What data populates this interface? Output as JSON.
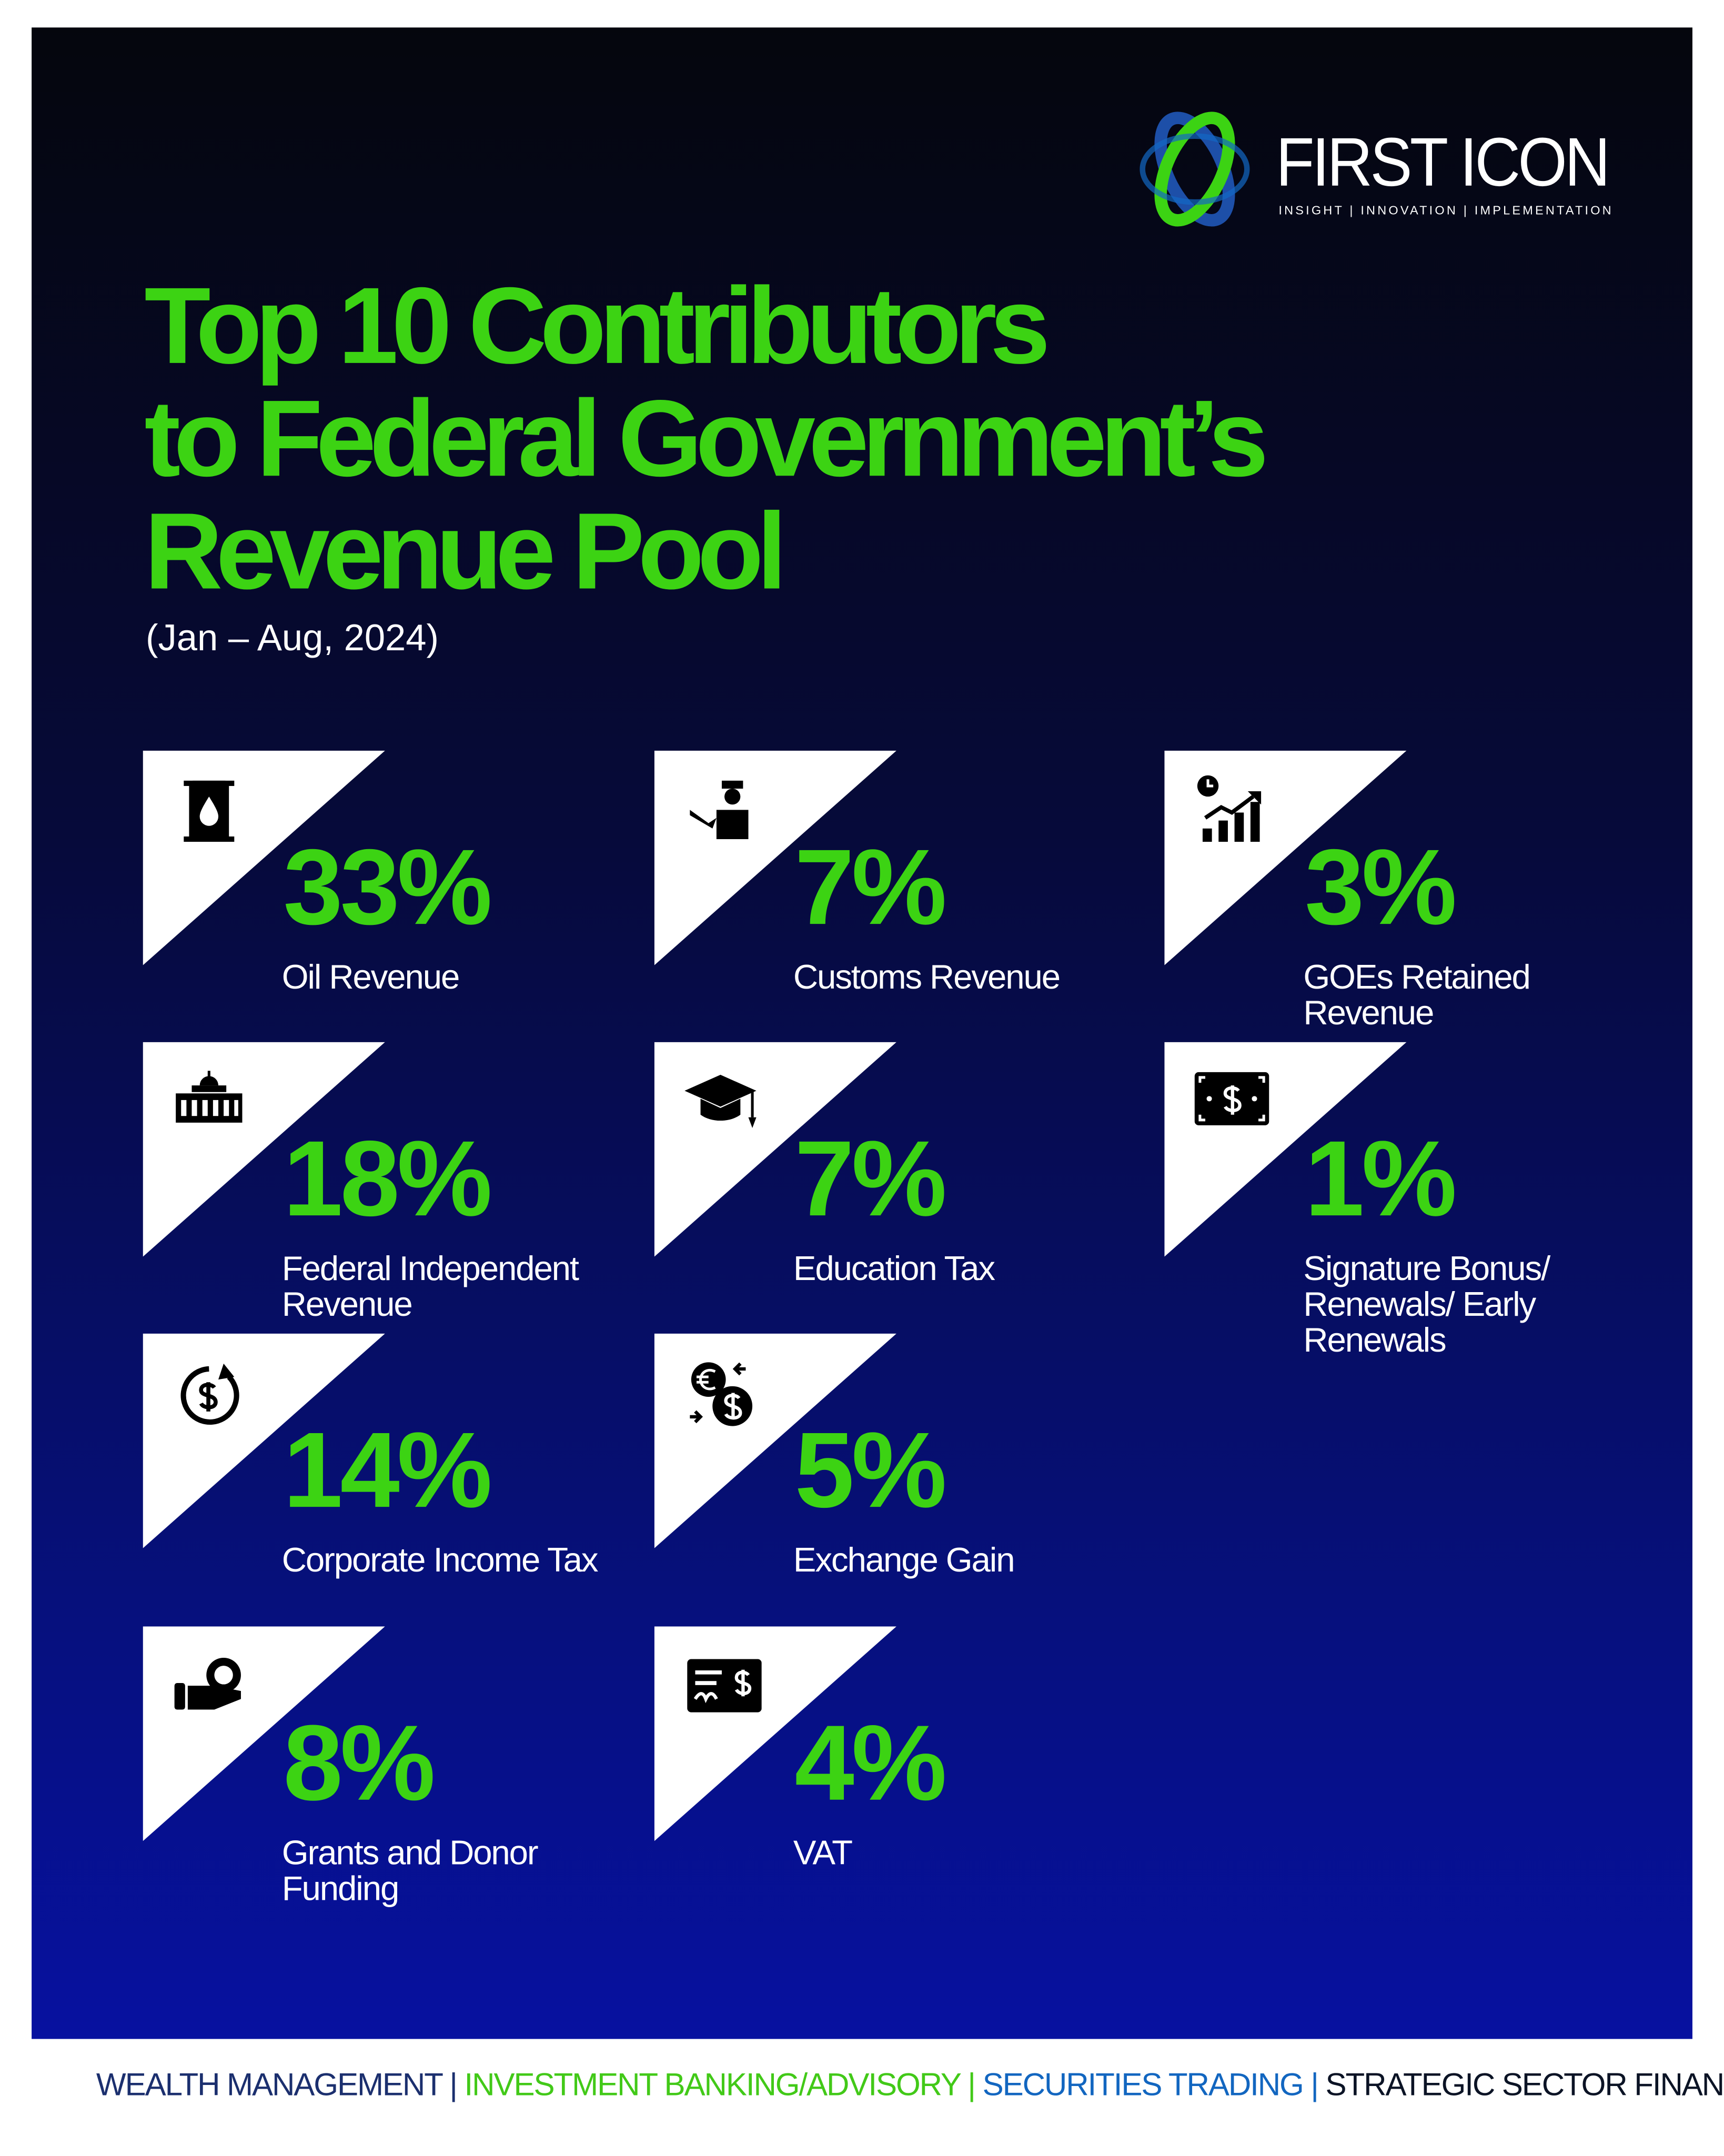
{
  "brand": {
    "name": "FIRST ICON",
    "tagline": "INSIGHT | INNOVATION | IMPLEMENTATION"
  },
  "title_lines": [
    "Top 10 Contributors",
    "to Federal Government’s",
    "Revenue Pool"
  ],
  "subtitle": "(Jan – Aug, 2024)",
  "contributors": [
    {
      "percent": "33%",
      "label": "Oil Revenue",
      "icon": "oil-barrel-icon"
    },
    {
      "percent": "18%",
      "label": "Federal Independent Revenue",
      "icon": "government-building-icon"
    },
    {
      "percent": "14%",
      "label": "Corporate Income Tax",
      "icon": "dollar-cycle-icon"
    },
    {
      "percent": "8%",
      "label": "Grants and Donor Funding",
      "icon": "hand-coin-icon"
    },
    {
      "percent": "7%",
      "label": "Customs Revenue",
      "icon": "customs-officer-icon"
    },
    {
      "percent": "7%",
      "label": "Education Tax",
      "icon": "graduation-cap-icon"
    },
    {
      "percent": "5%",
      "label": "Exchange Gain",
      "icon": "currency-exchange-icon"
    },
    {
      "percent": "4%",
      "label": "VAT",
      "icon": "receipt-icon"
    },
    {
      "percent": "3%",
      "label": "GOEs Retained Revenue",
      "icon": "growth-chart-icon"
    },
    {
      "percent": "1%",
      "label": "Signature Bonus/ Renewals/ Early Renewals",
      "icon": "banknote-icon"
    }
  ],
  "footer": [
    "WEALTH MANAGEMENT",
    "INVESTMENT BANKING/ADVISORY",
    "SECURITIES TRADING",
    "STRATEGIC SECTOR FINANCE"
  ],
  "colors": {
    "accent": "#3cd313",
    "panel_top": "#05060d",
    "panel_bottom": "#0711a0"
  }
}
